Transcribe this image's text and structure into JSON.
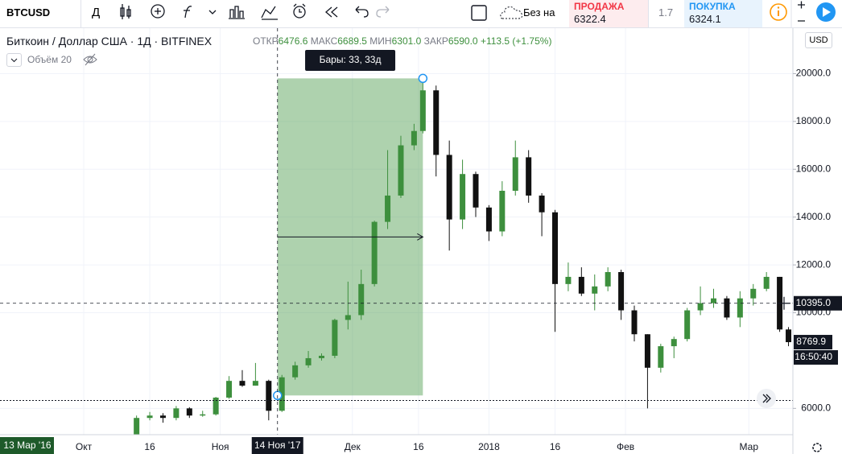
{
  "toolbar": {
    "symbol": "BTCUSD",
    "interval": "Д",
    "compare_label": "Без на",
    "sell": {
      "label": "ПРОДАЖА",
      "price": "6322.4"
    },
    "spread": "1.7",
    "buy": {
      "label": "ПОКУПКА",
      "price": "6324.1"
    }
  },
  "legend": {
    "title": "Биткоин / Доллар США · 1Д · BITFINEX",
    "open_label": "ОТКР",
    "open": "6476.6",
    "high_label": "МАКС",
    "high": "6689.5",
    "low_label": "МИН",
    "low": "6301.0",
    "close_label": "ЗАКР",
    "close": "6590.0",
    "change": "+113.5 (+1.75%)",
    "volume": "Объём 20"
  },
  "chart_data": {
    "type": "candlestick",
    "currency": "USD",
    "x": [
      "2017-10-10",
      "2017-10-13",
      "2017-10-16",
      "2017-10-19",
      "2017-10-22",
      "2017-10-25",
      "2017-10-28",
      "2017-10-31",
      "2017-11-03",
      "2017-11-06",
      "2017-11-09",
      "2017-11-12",
      "2017-11-15",
      "2017-11-18",
      "2017-11-21",
      "2017-11-24",
      "2017-11-27",
      "2017-11-30",
      "2017-12-03",
      "2017-12-06",
      "2017-12-09",
      "2017-12-12",
      "2017-12-15",
      "2017-12-17",
      "2017-12-20",
      "2017-12-23",
      "2017-12-26",
      "2017-12-29",
      "2018-01-01",
      "2018-01-04",
      "2018-01-07",
      "2018-01-10",
      "2018-01-13",
      "2018-01-16",
      "2018-01-19",
      "2018-01-22",
      "2018-01-25",
      "2018-01-28",
      "2018-01-31",
      "2018-02-03",
      "2018-02-06",
      "2018-02-09",
      "2018-02-12",
      "2018-02-15",
      "2018-02-18",
      "2018-02-21",
      "2018-02-24",
      "2018-02-27",
      "2018-03-02",
      "2018-03-05",
      "2018-03-08",
      "2018-03-10"
    ],
    "open": [
      4600,
      4750,
      5600,
      5700,
      5600,
      6000,
      5700,
      5750,
      6450,
      7150,
      6950,
      7150,
      5900,
      7300,
      7800,
      8100,
      8200,
      9700,
      9900,
      11200,
      13800,
      14900,
      17000,
      17600,
      19300,
      16600,
      13900,
      15800,
      14400,
      13400,
      15100,
      16500,
      14900,
      14200,
      11200,
      11500,
      10800,
      11100,
      11700,
      10100,
      9100,
      7700,
      8600,
      8900,
      10100,
      10400,
      10600,
      9800,
      10600,
      11000,
      11500,
      9300
    ],
    "high": [
      4900,
      5700,
      5850,
      5800,
      6100,
      6050,
      5900,
      6480,
      7350,
      7600,
      7900,
      7200,
      7400,
      7950,
      8400,
      8300,
      9750,
      11300,
      11800,
      13850,
      16800,
      17400,
      17900,
      19800,
      19500,
      17200,
      16400,
      15900,
      14500,
      15500,
      17200,
      16800,
      15000,
      14300,
      12100,
      11900,
      11600,
      11900,
      11800,
      10300,
      9100,
      8700,
      9000,
      10200,
      11100,
      11000,
      10700,
      10900,
      11200,
      11700,
      11500,
      9400
    ],
    "low": [
      4550,
      4700,
      5500,
      5400,
      5500,
      5600,
      5650,
      5700,
      6400,
      6900,
      6950,
      5500,
      5850,
      7200,
      7700,
      8000,
      8100,
      9300,
      9700,
      11100,
      13500,
      14800,
      16800,
      17500,
      15700,
      12600,
      13500,
      14000,
      13000,
      13200,
      14900,
      14600,
      13200,
      9200,
      10900,
      10700,
      10100,
      10900,
      9700,
      8800,
      6000,
      7500,
      8100,
      8800,
      9900,
      10200,
      9700,
      9400,
      10300,
      10900,
      9200,
      8600
    ],
    "close": [
      4750,
      5600,
      5700,
      5600,
      6000,
      5700,
      5750,
      6450,
      7150,
      6950,
      7150,
      5900,
      7300,
      7800,
      8100,
      8200,
      9700,
      9900,
      11200,
      13800,
      14900,
      17000,
      17600,
      19300,
      16600,
      13900,
      15800,
      14400,
      13400,
      15100,
      16500,
      14900,
      14200,
      11200,
      11500,
      10800,
      11100,
      11700,
      10100,
      9100,
      7700,
      8600,
      8900,
      10100,
      10400,
      10600,
      9800,
      10600,
      11000,
      11500,
      9300,
      8769.9
    ],
    "up_color": "#3d8f3d",
    "down_color": "#111111",
    "xlim": [
      "2017-09-12",
      "2018-03-11"
    ],
    "ylim": [
      4900,
      21900
    ],
    "xticks": [
      {
        "value": "2017-10-01",
        "label": "Окт"
      },
      {
        "value": "2017-10-16",
        "label": "16"
      },
      {
        "value": "2017-11-01",
        "label": "Ноя"
      },
      {
        "value": "2017-12-01",
        "label": "Дек"
      },
      {
        "value": "2017-12-16",
        "label": "16"
      },
      {
        "value": "2018-01-01",
        "label": "2018"
      },
      {
        "value": "2018-01-16",
        "label": "16"
      },
      {
        "value": "2018-02-01",
        "label": "Фев"
      },
      {
        "value": "2018-03-01",
        "label": "Мар"
      }
    ],
    "yticks": [
      {
        "value": 6000,
        "label": "6000.0"
      },
      {
        "value": 10000,
        "label": "10000.0"
      },
      {
        "value": 12000,
        "label": "12000.0"
      },
      {
        "value": 14000,
        "label": "14000.0"
      },
      {
        "value": 16000,
        "label": "16000.0"
      },
      {
        "value": 18000,
        "label": "18000.0"
      },
      {
        "value": 20000,
        "label": "20000.0"
      }
    ],
    "grid": true,
    "measure": {
      "x": [
        "2017-11-14",
        "2017-12-17"
      ],
      "y": [
        6540,
        19800
      ],
      "label": "Бары: 33, 33д",
      "color": "#4c9b4c"
    },
    "crosshair": {
      "x": {
        "value": "2017-11-14",
        "label": "14 Ноя '17"
      },
      "y": {
        "value": 10395,
        "label": "10395.0"
      }
    },
    "price_line": 6330,
    "last_price": 8769.9,
    "time_label": "16:50:40",
    "left_date_label": "13 Мар '16"
  }
}
